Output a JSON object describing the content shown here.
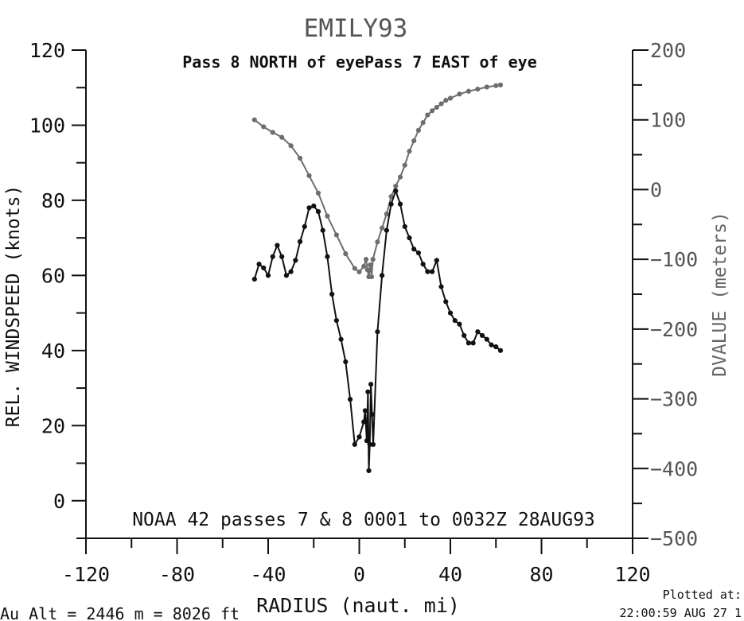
{
  "chart_data": {
    "type": "line",
    "title": "EMILY93",
    "subtitle": "Pass  8 NORTH of eyePass  7 EAST of eye",
    "annotation": "NOAA 42 passes  7 &  8  0001 to 0032Z 28AUG93",
    "xlabel": "RADIUS (naut. mi)",
    "ylabel_left": "REL. WINDSPEED (knots)",
    "ylabel_right": "DVALUE (meters)",
    "xlim": [
      -120,
      120
    ],
    "ylim_left": [
      -10,
      120
    ],
    "ylim_right": [
      -500,
      200
    ],
    "x_ticks": [
      -120,
      -80,
      -40,
      0,
      40,
      80,
      120
    ],
    "y_ticks_left": [
      0,
      20,
      40,
      60,
      80,
      100,
      120
    ],
    "y_ticks_right": [
      200,
      100,
      0,
      -100,
      -200,
      -300,
      -400,
      -500
    ],
    "footer_left": "Au  Alt  = 2446 m  =  8026 ft",
    "footer_right": [
      "Plotted at:",
      "22:00:59 AUG 27 1"
    ],
    "colors": {
      "wind": "#111111",
      "dvalue": "#6e6e6e",
      "axis": "#111111"
    },
    "series": [
      {
        "axis": "left",
        "points": [
          [
            -46,
            59
          ],
          [
            -44,
            63
          ],
          [
            -42,
            62
          ],
          [
            -40,
            60
          ],
          [
            -38,
            65
          ],
          [
            -36,
            68
          ],
          [
            -34,
            65
          ],
          [
            -32,
            60
          ],
          [
            -30,
            61
          ],
          [
            -28,
            64
          ],
          [
            -26,
            69
          ],
          [
            -24,
            73
          ],
          [
            -22,
            78
          ],
          [
            -20,
            78.5
          ],
          [
            -18,
            77
          ],
          [
            -16,
            72
          ],
          [
            -14,
            65
          ],
          [
            -12,
            55
          ],
          [
            -10,
            48
          ],
          [
            -8,
            43
          ],
          [
            -6,
            37
          ],
          [
            -4,
            27
          ],
          [
            -2,
            15
          ],
          [
            0,
            17
          ],
          [
            2,
            21
          ],
          [
            2.6,
            24
          ],
          [
            3.3,
            16
          ],
          [
            3.8,
            29
          ],
          [
            4.2,
            8
          ],
          [
            4.6,
            15
          ],
          [
            5.1,
            31
          ],
          [
            5.6,
            23
          ],
          [
            6.1,
            15
          ],
          [
            8,
            45
          ],
          [
            10,
            60
          ],
          [
            12,
            72
          ],
          [
            14,
            79
          ],
          [
            16,
            82.5
          ],
          [
            18,
            79
          ],
          [
            20,
            73
          ],
          [
            22,
            70
          ],
          [
            24,
            67
          ],
          [
            26,
            66
          ],
          [
            28,
            63
          ],
          [
            30,
            61
          ],
          [
            32,
            61
          ],
          [
            34,
            64
          ],
          [
            36,
            57
          ],
          [
            38,
            53
          ],
          [
            40,
            50
          ],
          [
            42,
            48
          ],
          [
            44,
            47
          ],
          [
            46,
            44
          ],
          [
            48,
            42
          ],
          [
            50,
            42
          ],
          [
            52,
            45
          ],
          [
            54,
            44
          ],
          [
            56,
            43
          ],
          [
            58,
            41.5
          ],
          [
            60,
            41
          ],
          [
            62,
            40
          ]
        ]
      },
      {
        "axis": "right",
        "points": [
          [
            -46,
            100
          ],
          [
            -42,
            90
          ],
          [
            -38,
            82
          ],
          [
            -34,
            75
          ],
          [
            -30,
            63
          ],
          [
            -26,
            45
          ],
          [
            -22,
            20
          ],
          [
            -18,
            -5
          ],
          [
            -14,
            -38
          ],
          [
            -10,
            -65
          ],
          [
            -6,
            -92
          ],
          [
            -2,
            -113
          ],
          [
            0,
            -118
          ],
          [
            2,
            -110
          ],
          [
            3,
            -100
          ],
          [
            3.6,
            -115
          ],
          [
            4.2,
            -125
          ],
          [
            4.8,
            -108
          ],
          [
            5.4,
            -125
          ],
          [
            6,
            -100
          ],
          [
            8,
            -75
          ],
          [
            10,
            -55
          ],
          [
            12,
            -35
          ],
          [
            14,
            -10
          ],
          [
            16,
            5
          ],
          [
            18,
            18
          ],
          [
            20,
            35
          ],
          [
            22,
            55
          ],
          [
            24,
            70
          ],
          [
            26,
            85
          ],
          [
            28,
            96
          ],
          [
            30,
            107
          ],
          [
            32,
            113
          ],
          [
            34,
            118
          ],
          [
            36,
            123
          ],
          [
            38,
            128
          ],
          [
            40,
            131
          ],
          [
            44,
            137
          ],
          [
            48,
            141
          ],
          [
            52,
            144
          ],
          [
            56,
            147
          ],
          [
            60,
            149
          ],
          [
            62,
            150
          ]
        ]
      }
    ]
  }
}
